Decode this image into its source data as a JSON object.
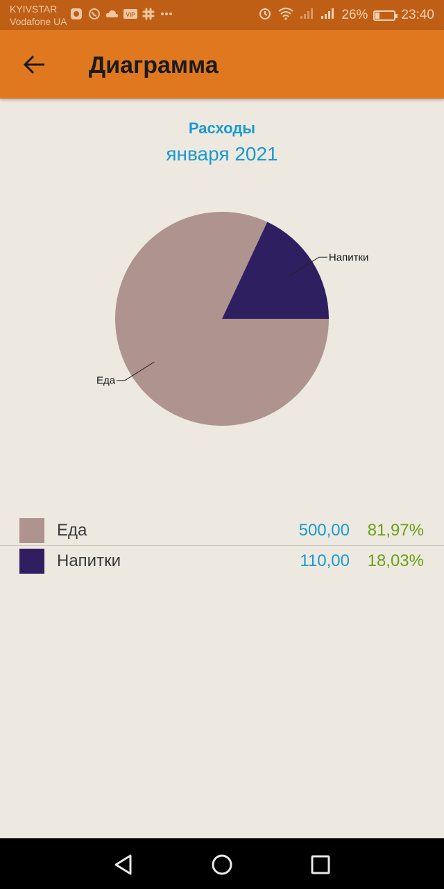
{
  "status_bar": {
    "carrier_1": "KYIVSTAR",
    "carrier_2": "Vodafone UA",
    "battery_percent": "26%",
    "time": "23:40",
    "battery_level": 0.26
  },
  "app_bar": {
    "title": "Диаграмма"
  },
  "chart_data": {
    "type": "pie",
    "title": "Расходы",
    "subtitle": "января 2021",
    "slices": [
      {
        "label": "Еда",
        "value": 500.0,
        "value_text": "500,00",
        "percent_text": "81,97%",
        "percent": 81.97,
        "color": "#ae938f"
      },
      {
        "label": "Напитки",
        "value": 110.0,
        "value_text": "110,00",
        "percent_text": "18,03%",
        "percent": 18.03,
        "color": "#2e2060"
      }
    ]
  },
  "colors": {
    "status_bar": "#bf5f15",
    "app_bar": "#e07820",
    "background": "#ede9e0",
    "accent_blue": "#1a9ad0",
    "percent_green": "#6aa014"
  },
  "nav_bar": {
    "back_icon": "triangle-back-icon",
    "home_icon": "circle-home-icon",
    "recents_icon": "square-recents-icon"
  }
}
